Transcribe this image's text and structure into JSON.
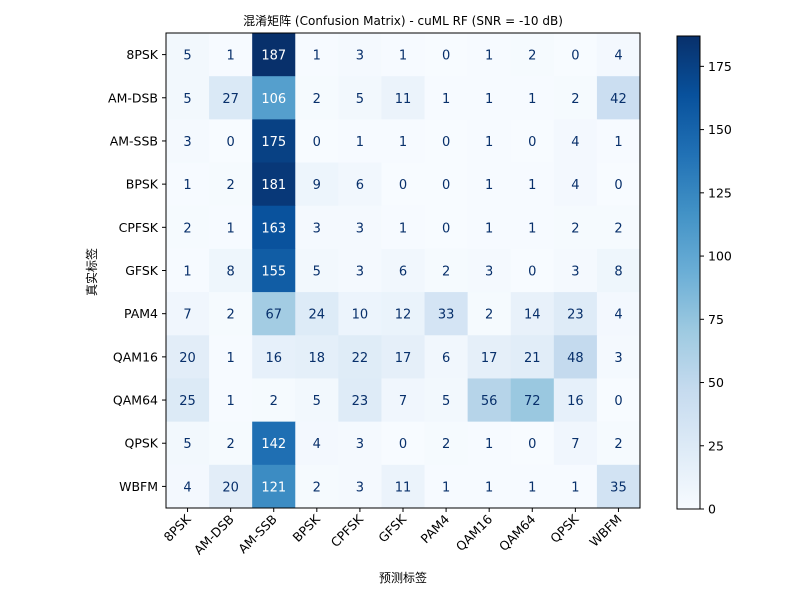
{
  "chart_data": {
    "type": "heatmap",
    "title": "混淆矩阵 (Confusion Matrix) - cuML RF (SNR = -10 dB)",
    "xlabel": "预测标签",
    "ylabel": "真实标签",
    "x_categories": [
      "8PSK",
      "AM-DSB",
      "AM-SSB",
      "BPSK",
      "CPFSK",
      "GFSK",
      "PAM4",
      "QAM16",
      "QAM64",
      "QPSK",
      "WBFM"
    ],
    "y_categories": [
      "8PSK",
      "AM-DSB",
      "AM-SSB",
      "BPSK",
      "CPFSK",
      "GFSK",
      "PAM4",
      "QAM16",
      "QAM64",
      "QPSK",
      "WBFM"
    ],
    "values": [
      [
        5,
        1,
        187,
        1,
        3,
        1,
        0,
        1,
        2,
        0,
        4
      ],
      [
        5,
        27,
        106,
        2,
        5,
        11,
        1,
        1,
        1,
        2,
        42
      ],
      [
        3,
        0,
        175,
        0,
        1,
        1,
        0,
        1,
        0,
        4,
        1
      ],
      [
        1,
        2,
        181,
        9,
        6,
        0,
        0,
        1,
        1,
        4,
        0
      ],
      [
        2,
        1,
        163,
        3,
        3,
        1,
        0,
        1,
        1,
        2,
        2
      ],
      [
        1,
        8,
        155,
        5,
        3,
        6,
        2,
        3,
        0,
        3,
        8
      ],
      [
        7,
        2,
        67,
        24,
        10,
        12,
        33,
        2,
        14,
        23,
        4
      ],
      [
        20,
        1,
        16,
        18,
        22,
        17,
        6,
        17,
        21,
        48,
        3
      ],
      [
        25,
        1,
        2,
        5,
        23,
        7,
        5,
        56,
        72,
        16,
        0
      ],
      [
        5,
        2,
        142,
        4,
        3,
        0,
        2,
        1,
        0,
        7,
        2
      ],
      [
        4,
        20,
        121,
        2,
        3,
        11,
        1,
        1,
        1,
        1,
        35
      ]
    ],
    "colormap": "Blues",
    "color_range": [
      0,
      187
    ],
    "colorbar_ticks": [
      0,
      25,
      50,
      75,
      100,
      125,
      150,
      175
    ],
    "x_tick_rotation": 45,
    "grid": false,
    "legend": "colorbar-right"
  }
}
